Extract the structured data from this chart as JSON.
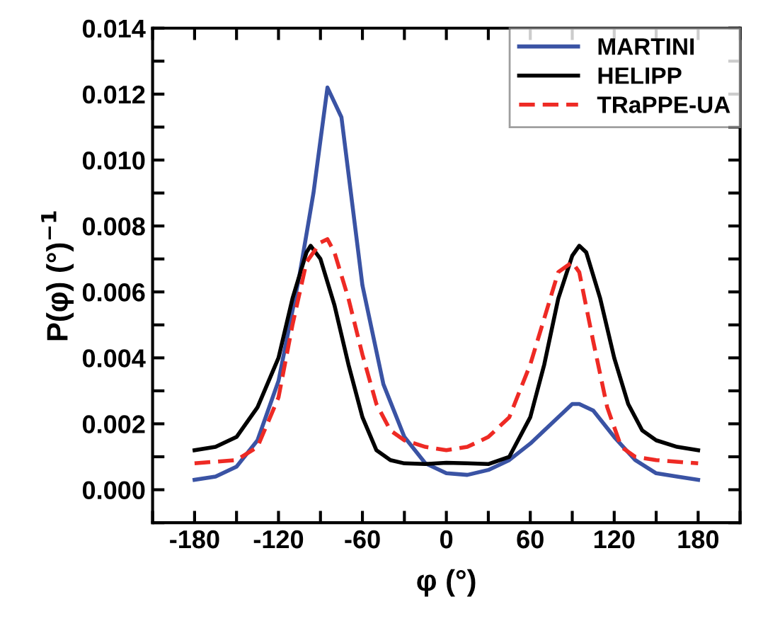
{
  "chart_data": {
    "type": "line",
    "xlabel": "φ (°)",
    "ylabel": "P(φ) (°)$^{−1}$",
    "xlim": [
      -210,
      210
    ],
    "ylim": [
      -0.001,
      0.014
    ],
    "xticks": [
      {
        "value": -210,
        "label": null
      },
      -180,
      {
        "value": -150,
        "label": null
      },
      -120,
      {
        "value": -90,
        "label": null
      },
      -60,
      {
        "value": -30,
        "label": null
      },
      0,
      {
        "value": 30,
        "label": null
      },
      60,
      {
        "value": 90,
        "label": null
      },
      120,
      {
        "value": 150,
        "label": null
      },
      180,
      {
        "value": 210,
        "label": null
      }
    ],
    "yticks": [
      {
        "value": -0.001,
        "label": null
      },
      {
        "value": 0,
        "label": "0.000"
      },
      {
        "value": 0.001,
        "label": null
      },
      {
        "value": 0.002,
        "label": "0.002"
      },
      {
        "value": 0.003,
        "label": null
      },
      {
        "value": 0.004,
        "label": "0.004"
      },
      {
        "value": 0.005,
        "label": null
      },
      {
        "value": 0.006,
        "label": "0.006"
      },
      {
        "value": 0.007,
        "label": null
      },
      {
        "value": 0.008,
        "label": "0.008"
      },
      {
        "value": 0.009,
        "label": null
      },
      {
        "value": 0.01,
        "label": "0.010"
      },
      {
        "value": 0.011,
        "label": null
      },
      {
        "value": 0.012,
        "label": "0.012"
      },
      {
        "value": 0.013,
        "label": null
      },
      {
        "value": 0.014,
        "label": "0.014"
      }
    ],
    "legend": "top right",
    "grid": false,
    "marker": "none",
    "series": [
      {
        "name": "MARTINI",
        "color": "#3a53a4",
        "line_style": "solid",
        "x": [
          -180,
          -165,
          -150,
          -135,
          -120,
          -105,
          -95,
          -85,
          -75,
          -60,
          -45,
          -30,
          -15,
          0,
          15,
          30,
          45,
          60,
          75,
          90,
          95,
          105,
          120,
          135,
          150,
          165,
          180
        ],
        "values": [
          0.0003,
          0.0004,
          0.0007,
          0.0015,
          0.0033,
          0.0065,
          0.009,
          0.0122,
          0.0113,
          0.0062,
          0.0032,
          0.0016,
          0.0008,
          0.0005,
          0.00045,
          0.0006,
          0.0009,
          0.0014,
          0.002,
          0.0026,
          0.0026,
          0.0024,
          0.0016,
          0.0009,
          0.0005,
          0.0004,
          0.0003
        ]
      },
      {
        "name": "HELIPP",
        "color": "#000000",
        "line_style": "solid",
        "x": [
          -180,
          -165,
          -150,
          -135,
          -120,
          -110,
          -100,
          -97,
          -90,
          -80,
          -70,
          -60,
          -50,
          -40,
          -30,
          -15,
          0,
          15,
          30,
          45,
          60,
          70,
          80,
          90,
          95,
          100,
          110,
          120,
          130,
          140,
          150,
          165,
          180
        ],
        "values": [
          0.0012,
          0.0013,
          0.0016,
          0.0025,
          0.004,
          0.0058,
          0.0072,
          0.0074,
          0.007,
          0.0056,
          0.0038,
          0.0022,
          0.0012,
          0.0009,
          0.0008,
          0.00078,
          0.00082,
          0.0008,
          0.00078,
          0.001,
          0.0022,
          0.0038,
          0.0058,
          0.0071,
          0.0074,
          0.0072,
          0.0058,
          0.004,
          0.0026,
          0.0018,
          0.0015,
          0.0013,
          0.0012
        ]
      },
      {
        "name": "TRaPPE-UA",
        "color": "#ee2a24",
        "line_style": "dashed",
        "x": [
          -180,
          -150,
          -135,
          -120,
          -110,
          -100,
          -90,
          -85,
          -80,
          -70,
          -60,
          -50,
          -40,
          -30,
          -15,
          0,
          15,
          30,
          45,
          60,
          70,
          80,
          90,
          95,
          105,
          115,
          125,
          135,
          150,
          180
        ],
        "values": [
          0.0008,
          0.0009,
          0.0013,
          0.0028,
          0.005,
          0.0069,
          0.0075,
          0.0076,
          0.0072,
          0.0058,
          0.0041,
          0.0026,
          0.0018,
          0.0015,
          0.0013,
          0.0012,
          0.0013,
          0.0016,
          0.0022,
          0.0038,
          0.0052,
          0.0066,
          0.0069,
          0.0066,
          0.0045,
          0.0025,
          0.0013,
          0.001,
          0.0009,
          0.0008
        ]
      }
    ]
  }
}
